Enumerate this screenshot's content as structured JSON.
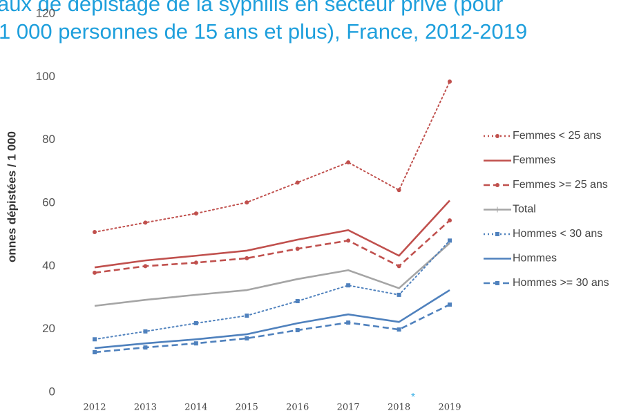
{
  "chart_data": {
    "type": "line",
    "title": [
      "aux de dépistage de la syphilis en secteur privé (pour",
      "1 000 personnes de 15 ans et plus), France, 2012-2019"
    ],
    "y_label": "onnes dépistées / 1 000",
    "annotation": "*",
    "categories": [
      "2012",
      "2013",
      "2014",
      "2015",
      "2016",
      "2017",
      "2018",
      "2019"
    ],
    "ylim": [
      0,
      120
    ],
    "yticks": [
      0,
      20,
      40,
      60,
      80,
      100,
      120
    ],
    "grid": false,
    "legend": "right",
    "series": [
      {
        "name": "Femmes < 25 ans",
        "color": "#c0504d",
        "style": "dotted",
        "marker": "circle",
        "values": [
          50.8,
          53.8,
          56.7,
          60.2,
          66.5,
          72.9,
          64.1,
          98.5
        ]
      },
      {
        "name": "Femmes",
        "color": "#c0504d",
        "style": "solid",
        "marker": "none",
        "values": [
          39.6,
          41.8,
          43.3,
          44.9,
          48.4,
          51.4,
          43.3,
          60.8
        ]
      },
      {
        "name": "Femmes >= 25 ans",
        "color": "#c0504d",
        "style": "dashed",
        "marker": "circle",
        "values": [
          37.9,
          40.0,
          41.1,
          42.5,
          45.5,
          48.1,
          40.0,
          54.5
        ]
      },
      {
        "name": "Total",
        "color": "#a5a5a5",
        "style": "solid",
        "marker": "none",
        "values": [
          27.4,
          29.3,
          30.9,
          32.4,
          35.9,
          38.7,
          33.0,
          47.3
        ]
      },
      {
        "name": "Hommes < 30 ans",
        "color": "#4f81bd",
        "style": "dotted",
        "marker": "square",
        "values": [
          16.8,
          19.3,
          21.9,
          24.3,
          28.9,
          33.9,
          30.9,
          48.1
        ]
      },
      {
        "name": "Hommes",
        "color": "#4f81bd",
        "style": "solid",
        "marker": "none",
        "values": [
          14.0,
          15.5,
          16.8,
          18.4,
          21.9,
          24.7,
          22.3,
          32.4
        ]
      },
      {
        "name": "Hommes >= 30 ans",
        "color": "#4f81bd",
        "style": "dashed",
        "marker": "square",
        "values": [
          12.7,
          14.2,
          15.5,
          17.1,
          19.7,
          22.1,
          19.9,
          27.8
        ]
      }
    ]
  }
}
